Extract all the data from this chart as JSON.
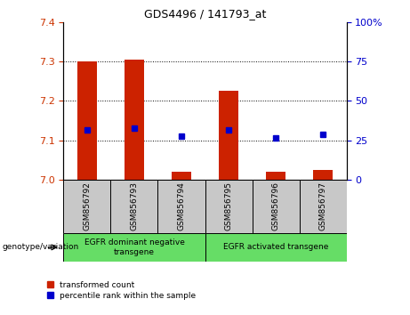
{
  "title": "GDS4496 / 141793_at",
  "samples": [
    "GSM856792",
    "GSM856793",
    "GSM856794",
    "GSM856795",
    "GSM856796",
    "GSM856797"
  ],
  "red_values": [
    7.3,
    7.305,
    7.02,
    7.225,
    7.02,
    7.025
  ],
  "blue_values": [
    7.125,
    7.13,
    7.11,
    7.125,
    7.105,
    7.115
  ],
  "red_base": 7.0,
  "ylim": [
    7.0,
    7.4
  ],
  "yticks": [
    7.0,
    7.1,
    7.2,
    7.3,
    7.4
  ],
  "right_yticks": [
    0,
    25,
    50,
    75,
    100
  ],
  "right_ylim": [
    0,
    100
  ],
  "left_tick_color": "#cc3300",
  "right_tick_color": "#0000cc",
  "bar_color": "#cc2200",
  "dot_color": "#0000cc",
  "background_sample": "#c8c8c8",
  "green_color": "#66dd66",
  "legend_red_label": "transformed count",
  "legend_blue_label": "percentile rank within the sample",
  "xlabel_annotation": "genotype/variation",
  "bar_width": 0.4,
  "group1_label": "EGFR dominant negative\ntransgene",
  "group2_label": "EGFR activated transgene"
}
